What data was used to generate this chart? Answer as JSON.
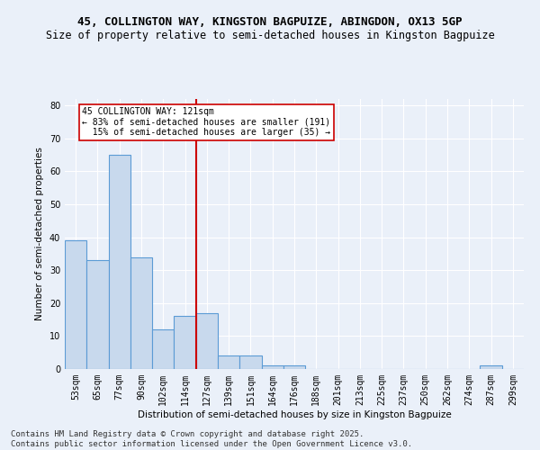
{
  "title_line1": "45, COLLINGTON WAY, KINGSTON BAGPUIZE, ABINGDON, OX13 5GP",
  "title_line2": "Size of property relative to semi-detached houses in Kingston Bagpuize",
  "xlabel": "Distribution of semi-detached houses by size in Kingston Bagpuize",
  "ylabel": "Number of semi-detached properties",
  "categories": [
    "53sqm",
    "65sqm",
    "77sqm",
    "90sqm",
    "102sqm",
    "114sqm",
    "127sqm",
    "139sqm",
    "151sqm",
    "164sqm",
    "176sqm",
    "188sqm",
    "201sqm",
    "213sqm",
    "225sqm",
    "237sqm",
    "250sqm",
    "262sqm",
    "274sqm",
    "287sqm",
    "299sqm"
  ],
  "values": [
    39,
    33,
    65,
    34,
    12,
    16,
    17,
    4,
    4,
    1,
    1,
    0,
    0,
    0,
    0,
    0,
    0,
    0,
    0,
    1,
    0
  ],
  "bar_color": "#c8d9ed",
  "bar_edge_color": "#5b9bd5",
  "vline_color": "#cc0000",
  "annotation_text": "45 COLLINGTON WAY: 121sqm\n← 83% of semi-detached houses are smaller (191)\n  15% of semi-detached houses are larger (35) →",
  "annotation_box_color": "#ffffff",
  "annotation_box_edge": "#cc0000",
  "footer_text": "Contains HM Land Registry data © Crown copyright and database right 2025.\nContains public sector information licensed under the Open Government Licence v3.0.",
  "ylim": [
    0,
    82
  ],
  "yticks": [
    0,
    10,
    20,
    30,
    40,
    50,
    60,
    70,
    80
  ],
  "bg_color": "#eaf0f9",
  "grid_color": "#ffffff",
  "title1_fontsize": 9,
  "title2_fontsize": 8.5,
  "axis_fontsize": 7.5,
  "tick_fontsize": 7,
  "footer_fontsize": 6.5
}
